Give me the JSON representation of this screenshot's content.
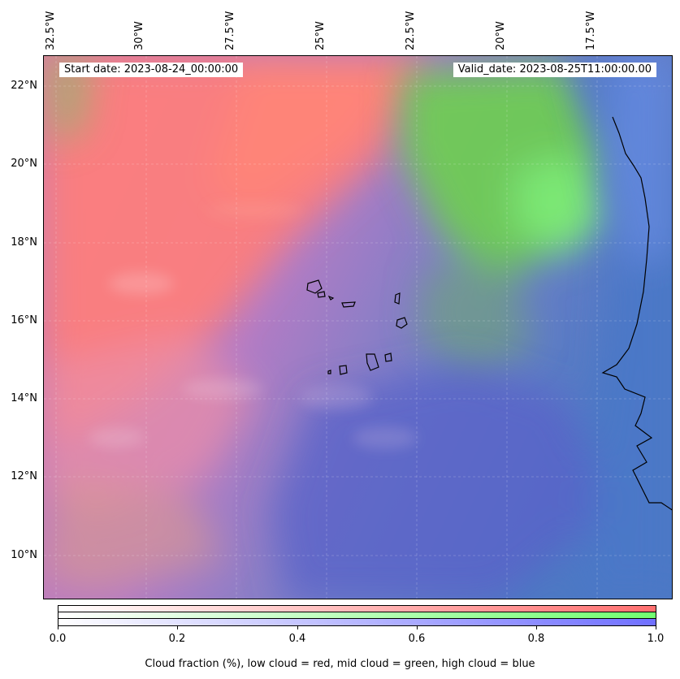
{
  "header": {
    "start_date": "Start date: 2023-08-24_00:00:00",
    "valid_date": "Valid_date: 2023-08-25T11:00:00.00"
  },
  "axes": {
    "longitude_labels": [
      "32.5°W",
      "30°W",
      "27.5°W",
      "25°W",
      "22.5°W",
      "20°W",
      "17.5°W"
    ],
    "latitude_labels": [
      "22°N",
      "20°N",
      "18°N",
      "16°N",
      "14°N",
      "12°N",
      "10°N"
    ]
  },
  "colorbar": {
    "ticks": [
      "0.0",
      "0.2",
      "0.4",
      "0.6",
      "0.8",
      "1.0"
    ],
    "label": "Cloud fraction (%), low cloud = red, mid cloud = green, high cloud = blue",
    "rows": [
      {
        "name": "low cloud",
        "color": "#ff7070"
      },
      {
        "name": "mid cloud",
        "color": "#70ff70"
      },
      {
        "name": "high cloud",
        "color": "#7070ff"
      }
    ]
  },
  "colors": {
    "low_cloud": "#ff7b78",
    "mid_cloud": "#6fcf4f",
    "high_cloud": "#4a6fd0",
    "background_blend": "#c07cc8"
  }
}
